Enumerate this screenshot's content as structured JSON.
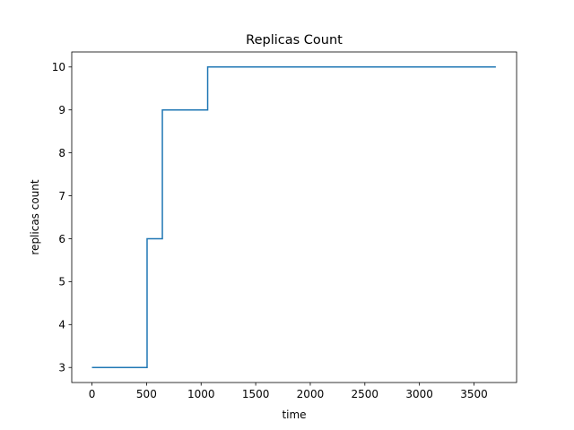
{
  "chart_data": {
    "type": "line",
    "title": "Replicas Count",
    "xlabel": "time",
    "ylabel": "replicas count",
    "xlim": [
      -185,
      3890
    ],
    "ylim": [
      2.65,
      10.35
    ],
    "xticks": [
      0,
      500,
      1000,
      1500,
      2000,
      2500,
      3000,
      3500
    ],
    "yticks": [
      3,
      4,
      5,
      6,
      7,
      8,
      9,
      10
    ],
    "grid": false,
    "step": "post",
    "colors": {
      "line": "#1f77b4"
    },
    "series": [
      {
        "x": [
          0,
          505,
          645,
          1060,
          3700
        ],
        "y": [
          3,
          6,
          9,
          10,
          10
        ]
      }
    ]
  }
}
